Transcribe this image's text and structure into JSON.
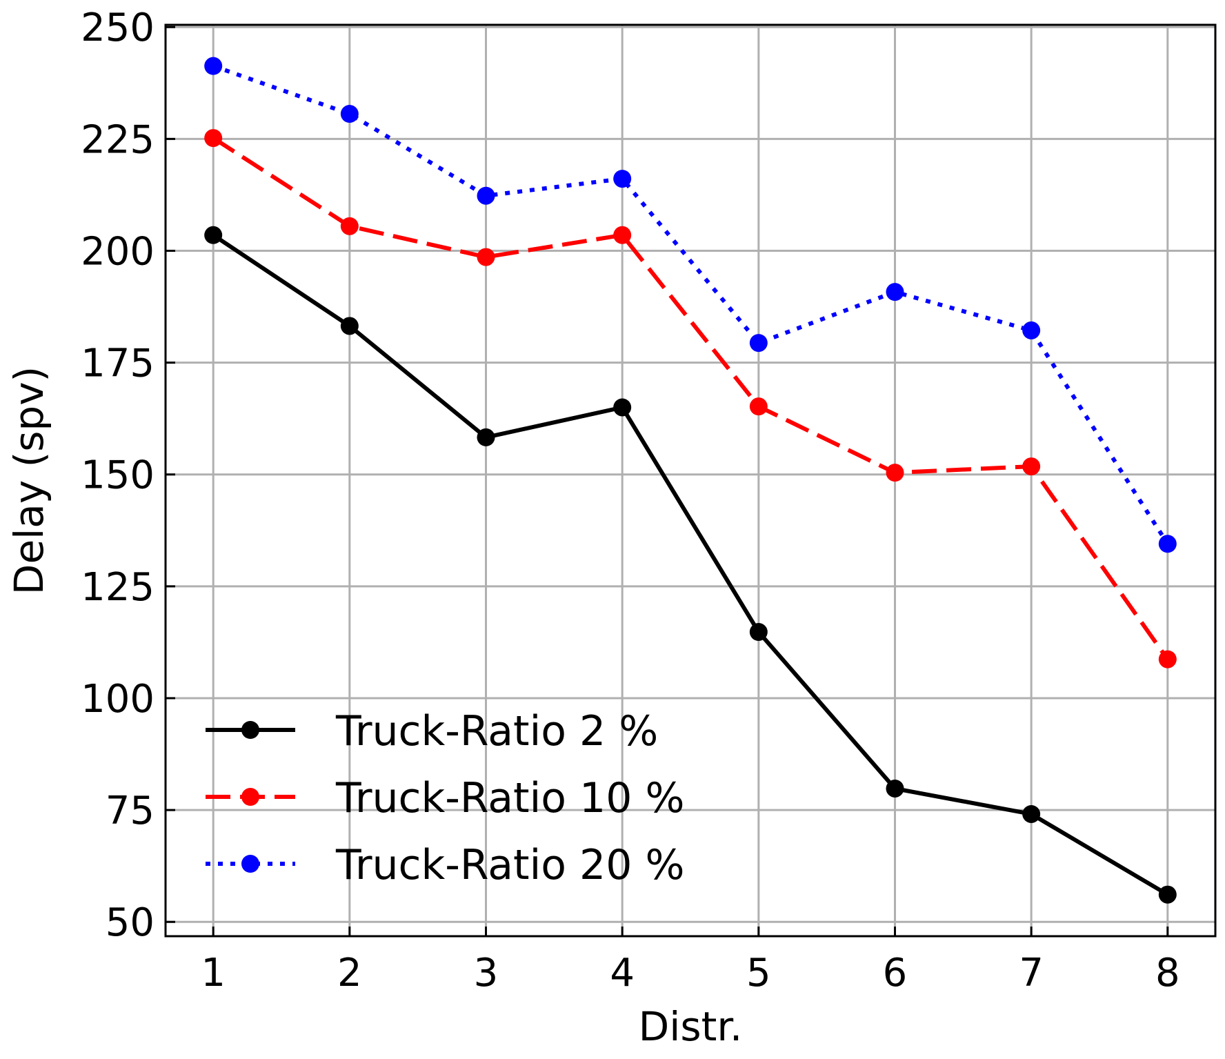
{
  "chart_data": {
    "type": "line",
    "xlabel": "Distr.",
    "ylabel": "Delay (spv)",
    "x": [
      1,
      2,
      3,
      4,
      5,
      6,
      7,
      8
    ],
    "xlim": [
      0.65,
      8.35
    ],
    "ylim": [
      46.8,
      250.5
    ],
    "yticks": [
      50,
      75,
      100,
      125,
      150,
      175,
      200,
      225,
      250
    ],
    "xticks": [
      1,
      2,
      3,
      4,
      5,
      6,
      7,
      8
    ],
    "grid": true,
    "legend_position": "lower-left",
    "series": [
      {
        "name": "Truck-Ratio 2 %",
        "color": "#000000",
        "line_style": "solid",
        "values": [
          203.5,
          183.2,
          158.3,
          165.0,
          114.8,
          79.8,
          74.1,
          56.1
        ]
      },
      {
        "name": "Truck-Ratio 10 %",
        "color": "#ff0000",
        "line_style": "dashed",
        "values": [
          225.2,
          205.5,
          198.6,
          203.5,
          165.2,
          150.4,
          151.8,
          108.7
        ]
      },
      {
        "name": "Truck-Ratio 20 %",
        "color": "#0000ff",
        "line_style": "dotted",
        "values": [
          241.3,
          230.6,
          212.3,
          216.1,
          179.4,
          190.8,
          182.2,
          134.5
        ]
      }
    ]
  }
}
